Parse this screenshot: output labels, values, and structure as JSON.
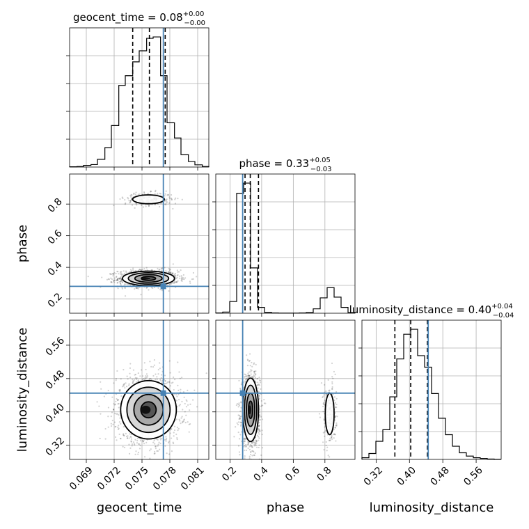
{
  "chart_data": {
    "type": "corner",
    "parameters": [
      "geocent_time",
      "phase",
      "luminosity_distance"
    ],
    "axis_labels": {
      "geocent_time": "geocent_time",
      "phase": "phase",
      "luminosity_distance": "luminosity_distance"
    },
    "ranges": {
      "geocent_time": [
        0.0672,
        0.0822
      ],
      "phase": [
        0.11,
        0.99
      ],
      "luminosity_distance": [
        0.286,
        0.62
      ]
    },
    "ticks": {
      "geocent_time": [
        0.069,
        0.072,
        0.075,
        0.078,
        0.081
      ],
      "phase": [
        0.2,
        0.4,
        0.6,
        0.8
      ],
      "luminosity_distance": [
        0.32,
        0.4,
        0.48,
        0.56
      ]
    },
    "tick_labels": {
      "geocent_time": [
        "0.069",
        "0.072",
        "0.075",
        "0.078",
        "0.081"
      ],
      "phase": [
        "0.2",
        "0.4",
        "0.6",
        "0.8"
      ],
      "luminosity_distance": [
        "0.32",
        "0.40",
        "0.48",
        "0.56"
      ]
    },
    "titles": {
      "geocent_time": {
        "text": "geocent_time = 0.08",
        "sup": "+0.00",
        "sub": "−0.00"
      },
      "phase": {
        "text": "phase = 0.33",
        "sup": "+0.05",
        "sub": "−0.03"
      },
      "luminosity_distance": {
        "text": "luminosity_distance = 0.40",
        "sup": "+0.04",
        "sub": "−0.04"
      }
    },
    "truths": {
      "geocent_time": 0.0773,
      "phase": 0.28,
      "luminosity_distance": 0.445
    },
    "quantiles": {
      "geocent_time": [
        0.074,
        0.0758,
        0.0775
      ],
      "phase": [
        0.295,
        0.328,
        0.38
      ],
      "luminosity_distance": [
        0.365,
        0.403,
        0.443
      ]
    },
    "histograms": {
      "geocent_time": {
        "edges": [
          0.0672,
          0.068,
          0.0687,
          0.0695,
          0.0702,
          0.071,
          0.0717,
          0.0725,
          0.0732,
          0.074,
          0.0747,
          0.0755,
          0.0762,
          0.077,
          0.0777,
          0.0785,
          0.0792,
          0.08,
          0.0807,
          0.0815,
          0.0822
        ],
        "counts": [
          1,
          2,
          6,
          9,
          28,
          70,
          150,
          295,
          330,
          380,
          420,
          465,
          470,
          330,
          160,
          105,
          45,
          20,
          8,
          2
        ]
      },
      "phase": {
        "edges": [
          0.11,
          0.154,
          0.198,
          0.242,
          0.286,
          0.33,
          0.374,
          0.418,
          0.462,
          0.506,
          0.55,
          0.594,
          0.638,
          0.682,
          0.726,
          0.77,
          0.814,
          0.858,
          0.902,
          0.946,
          0.99
        ],
        "counts": [
          2,
          8,
          80,
          820,
          890,
          310,
          40,
          6,
          2,
          1,
          1,
          1,
          2,
          5,
          30,
          105,
          175,
          110,
          40,
          5
        ]
      },
      "luminosity_distance": {
        "edges": [
          0.286,
          0.3027,
          0.3194,
          0.3361,
          0.3528,
          0.3695,
          0.3862,
          0.4029,
          0.4196,
          0.4363,
          0.453,
          0.4697,
          0.4864,
          0.5031,
          0.5198,
          0.5365,
          0.5532,
          0.5699,
          0.5866,
          0.6033,
          0.62
        ],
        "counts": [
          5,
          18,
          55,
          90,
          190,
          305,
          380,
          395,
          315,
          280,
          200,
          125,
          75,
          40,
          20,
          10,
          5,
          3,
          1,
          0
        ]
      }
    },
    "joint_modes": {
      "geocent_time|phase": [
        {
          "cx": 0.0757,
          "cy": 0.33,
          "sx": 0.0014,
          "sy": 0.023,
          "weight": 0.82
        },
        {
          "cx": 0.0757,
          "cy": 0.83,
          "sx": 0.0011,
          "sy": 0.018,
          "weight": 0.18
        }
      ],
      "geocent_time|luminosity_distance": [
        {
          "cx": 0.0757,
          "cy": 0.405,
          "sx": 0.0015,
          "sy": 0.035,
          "weight": 1.0
        }
      ],
      "phase|luminosity_distance": [
        {
          "cx": 0.33,
          "cy": 0.405,
          "sx": 0.025,
          "sy": 0.038,
          "weight": 0.82
        },
        {
          "cx": 0.83,
          "cy": 0.395,
          "sx": 0.018,
          "sy": 0.032,
          "weight": 0.18
        }
      ]
    },
    "colors": {
      "truth": "#4682b4",
      "hist": "#000000",
      "quantile": "#000000",
      "grid": "#b0b0b0",
      "samples": "#000000"
    },
    "grid": true
  }
}
